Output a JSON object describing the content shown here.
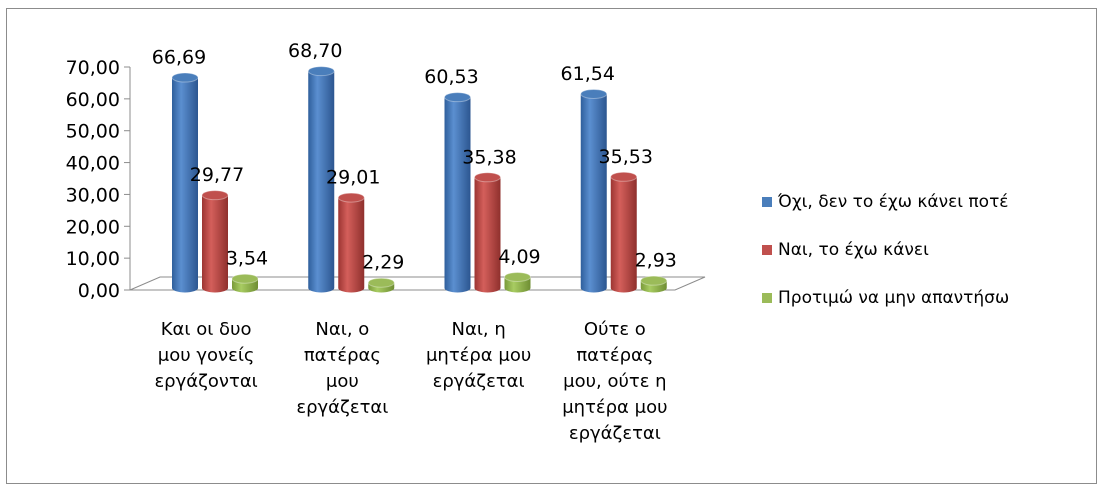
{
  "chart_data": {
    "type": "bar",
    "title": "",
    "xlabel": "",
    "ylabel": "",
    "ylim": [
      0,
      70
    ],
    "yticks": [
      "0,00",
      "10,00",
      "20,00",
      "30,00",
      "40,00",
      "50,00",
      "60,00",
      "70,00"
    ],
    "yticks_values": [
      0,
      10,
      20,
      30,
      40,
      50,
      60,
      70
    ],
    "grid": false,
    "legend_position": "right",
    "three_d": true,
    "categories": [
      [
        "Και οι δυο",
        "μου γονείς",
        "εργάζονται"
      ],
      [
        "Ναι, ο",
        "πατέρας",
        "μου",
        "εργάζεται"
      ],
      [
        "Ναι, η",
        "μητέρα μου",
        "εργάζεται"
      ],
      [
        "Ούτε ο",
        "πατέρας",
        "μου, ούτε η",
        "μητέρα μου",
        "εργάζεται"
      ]
    ],
    "series": [
      {
        "name": "Όχι, δεν το έχω κάνει ποτέ",
        "color": "#4a7ebb",
        "values": [
          66.69,
          68.7,
          60.53,
          61.54
        ],
        "labels": [
          "66,69",
          "68,70",
          "60,53",
          "61,54"
        ]
      },
      {
        "name": "Ναι, το έχω κάνει",
        "color": "#c0504d",
        "values": [
          29.77,
          29.01,
          35.38,
          35.53
        ],
        "labels": [
          "29,77",
          "29,01",
          "35,38",
          "35,53"
        ]
      },
      {
        "name": "Προτιμώ να μην απαντήσω",
        "color": "#9bbb59",
        "values": [
          3.54,
          2.29,
          4.09,
          2.93
        ],
        "labels": [
          "3,54",
          "2,29",
          "4,09",
          "2,93"
        ]
      }
    ]
  }
}
